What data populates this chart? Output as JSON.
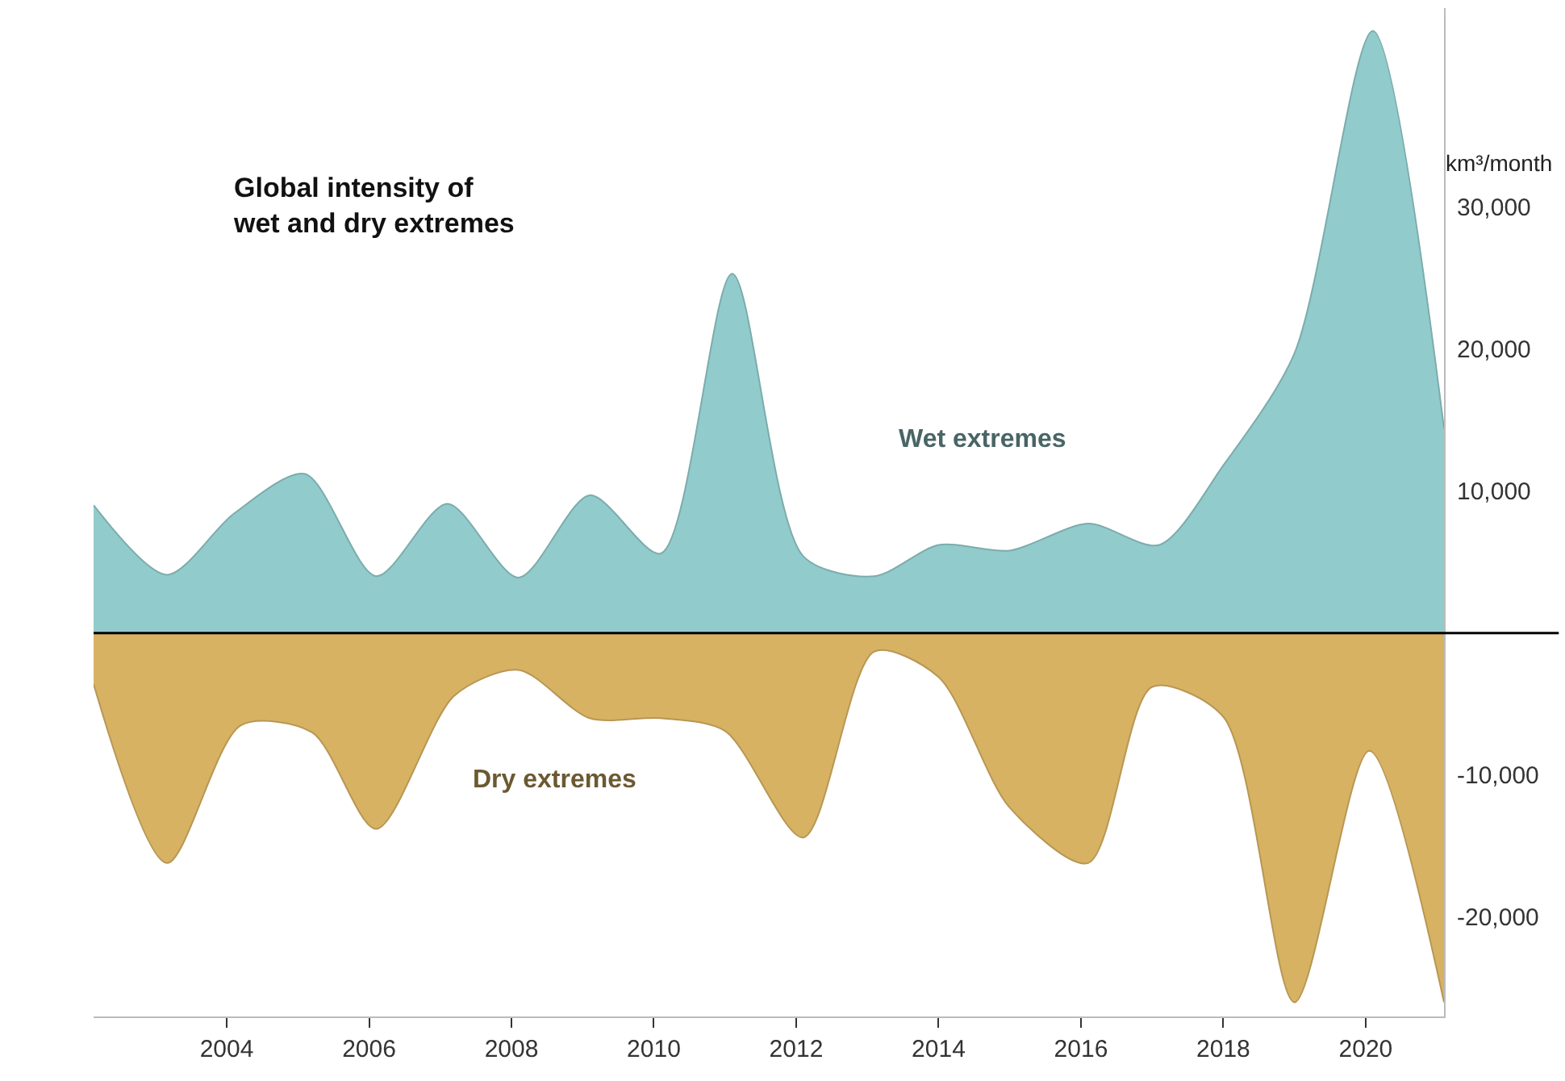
{
  "chart_data": {
    "type": "area",
    "title": "Global intensity of\nwet and dry extremes",
    "ylabel": "km³/month",
    "x": [
      2002.13,
      2003.16,
      2004.1,
      2005.1,
      2006.1,
      2007.1,
      2008.1,
      2009.1,
      2010.1,
      2011.1,
      2012.1,
      2013.1,
      2014.0,
      2015.0,
      2016.1,
      2017.1,
      2018.0,
      2019.0,
      2020.1,
      2021.1
    ],
    "series": [
      {
        "name": "Wet extremes",
        "color": "#92cbcb",
        "values": [
          9000,
          4100,
          8400,
          11200,
          4000,
          9100,
          3900,
          9700,
          5600,
          25300,
          5400,
          4000,
          6200,
          5800,
          7700,
          6200,
          11800,
          19700,
          42400,
          14400
        ]
      },
      {
        "name": "Dry extremes",
        "color": "#d8b263",
        "x": [
          2002.13,
          2003.16,
          2004.2,
          2005.2,
          2006.1,
          2007.2,
          2008.1,
          2009.1,
          2010.1,
          2011.0,
          2012.1,
          2013.1,
          2014.0,
          2015.0,
          2016.1,
          2017.0,
          2018.0,
          2019.0,
          2020.05,
          2021.1
        ],
        "values": [
          -3600,
          -16200,
          -6500,
          -7000,
          -13800,
          -4400,
          -2600,
          -6000,
          -6000,
          -6900,
          -14400,
          -1300,
          -3100,
          -12300,
          -16200,
          -3800,
          -5900,
          -26000,
          -8300,
          -26000
        ]
      }
    ],
    "xlim": [
      2002.13,
      2021.1
    ],
    "xticks": [
      2004,
      2006,
      2008,
      2010,
      2012,
      2014,
      2016,
      2018,
      2020
    ],
    "ylim": [
      -27000,
      44000
    ],
    "yticks": [
      {
        "value": -20000,
        "label": "-20,000"
      },
      {
        "value": -10000,
        "label": "-10,000"
      },
      {
        "value": 10000,
        "label": "10,000"
      },
      {
        "value": 20000,
        "label": "20,000"
      },
      {
        "value": 30000,
        "label": "30,000"
      }
    ],
    "ref_lines": [
      {
        "axis": "y",
        "value": 0,
        "color": "#000000"
      }
    ],
    "legend": false
  }
}
